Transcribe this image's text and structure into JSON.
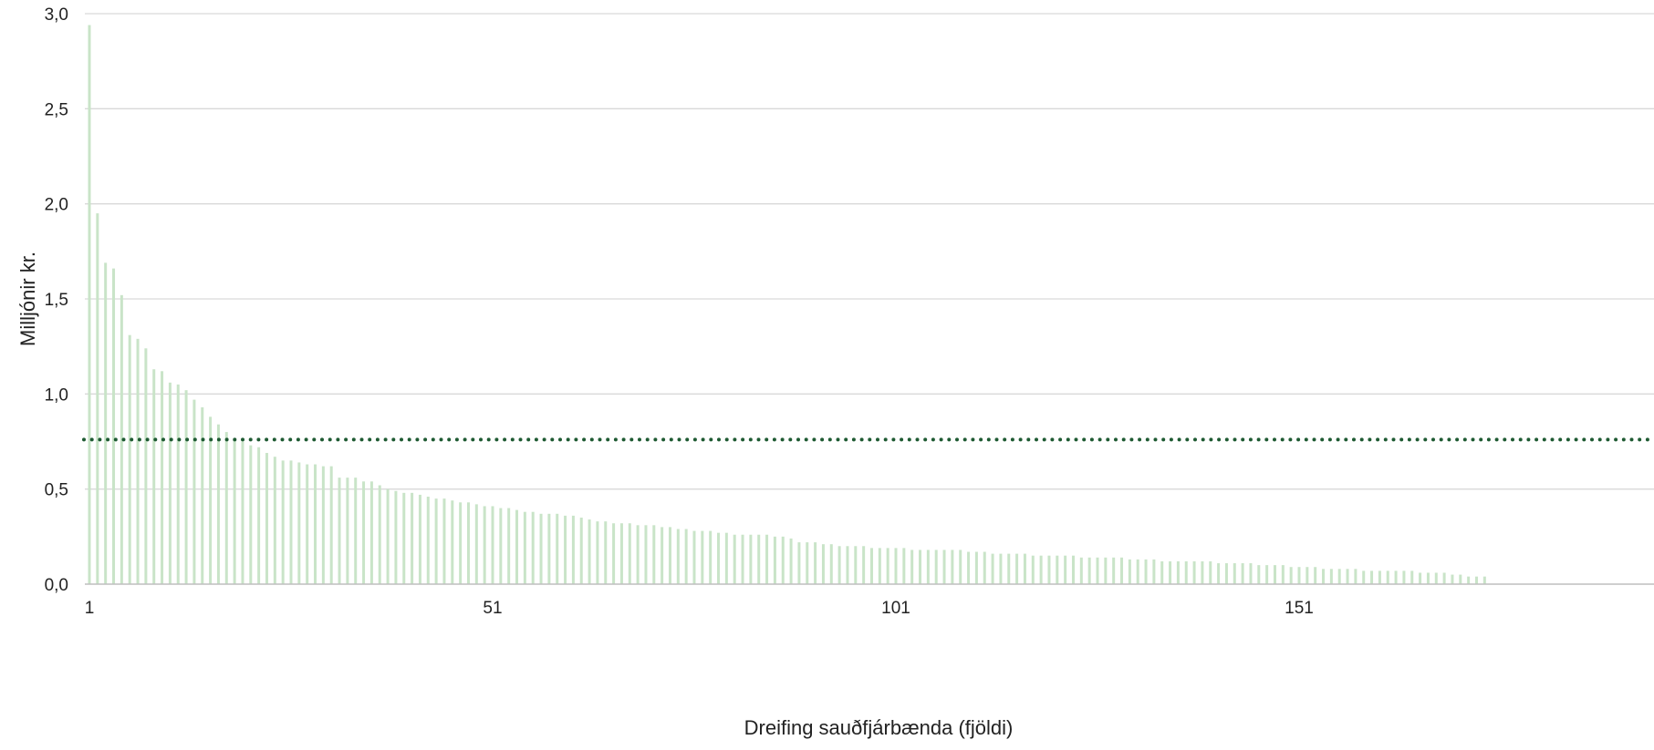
{
  "chart_data": {
    "type": "bar",
    "xlabel": "Dreifing sauðfjárbænda (fjöldi)",
    "ylabel": "Milljónir kr.",
    "ylim": [
      0,
      3.0
    ],
    "y_ticks": [
      "0,0",
      "0,5",
      "1,0",
      "1,5",
      "2,0",
      "2,5",
      "3,0"
    ],
    "x_ticks": [
      {
        "value": 1,
        "label": "1"
      },
      {
        "value": 51,
        "label": "51"
      },
      {
        "value": 101,
        "label": "101"
      },
      {
        "value": 151,
        "label": "151"
      }
    ],
    "grid": true,
    "legend": "none",
    "reference_line": {
      "style": "dotted",
      "value": 0.76
    },
    "series": [
      {
        "values": [
          2.94,
          1.95,
          1.69,
          1.66,
          1.52,
          1.31,
          1.29,
          1.24,
          1.13,
          1.12,
          1.06,
          1.05,
          1.02,
          0.97,
          0.93,
          0.88,
          0.84,
          0.8,
          0.76,
          0.75,
          0.73,
          0.72,
          0.69,
          0.67,
          0.65,
          0.65,
          0.64,
          0.63,
          0.63,
          0.62,
          0.62,
          0.56,
          0.56,
          0.56,
          0.54,
          0.54,
          0.52,
          0.5,
          0.49,
          0.48,
          0.48,
          0.47,
          0.46,
          0.45,
          0.45,
          0.44,
          0.43,
          0.43,
          0.42,
          0.41,
          0.41,
          0.4,
          0.4,
          0.39,
          0.38,
          0.38,
          0.37,
          0.37,
          0.37,
          0.36,
          0.36,
          0.35,
          0.34,
          0.33,
          0.33,
          0.32,
          0.32,
          0.32,
          0.31,
          0.31,
          0.31,
          0.3,
          0.3,
          0.29,
          0.29,
          0.28,
          0.28,
          0.28,
          0.27,
          0.27,
          0.26,
          0.26,
          0.26,
          0.26,
          0.26,
          0.25,
          0.25,
          0.24,
          0.22,
          0.22,
          0.22,
          0.21,
          0.21,
          0.2,
          0.2,
          0.2,
          0.2,
          0.19,
          0.19,
          0.19,
          0.19,
          0.19,
          0.18,
          0.18,
          0.18,
          0.18,
          0.18,
          0.18,
          0.18,
          0.17,
          0.17,
          0.17,
          0.16,
          0.16,
          0.16,
          0.16,
          0.16,
          0.15,
          0.15,
          0.15,
          0.15,
          0.15,
          0.15,
          0.14,
          0.14,
          0.14,
          0.14,
          0.14,
          0.14,
          0.13,
          0.13,
          0.13,
          0.13,
          0.12,
          0.12,
          0.12,
          0.12,
          0.12,
          0.12,
          0.12,
          0.11,
          0.11,
          0.11,
          0.11,
          0.11,
          0.1,
          0.1,
          0.1,
          0.1,
          0.09,
          0.09,
          0.09,
          0.09,
          0.08,
          0.08,
          0.08,
          0.08,
          0.08,
          0.07,
          0.07,
          0.07,
          0.07,
          0.07,
          0.07,
          0.07,
          0.06,
          0.06,
          0.06,
          0.06,
          0.05,
          0.05,
          0.04,
          0.04,
          0.04
        ],
        "color": "#c9e4c8"
      }
    ],
    "colors": {
      "bar": "#c9e4c8",
      "reference_line": "#1e5a32",
      "grid": "#d9d9d9",
      "axis": "#bfbfbf"
    }
  }
}
